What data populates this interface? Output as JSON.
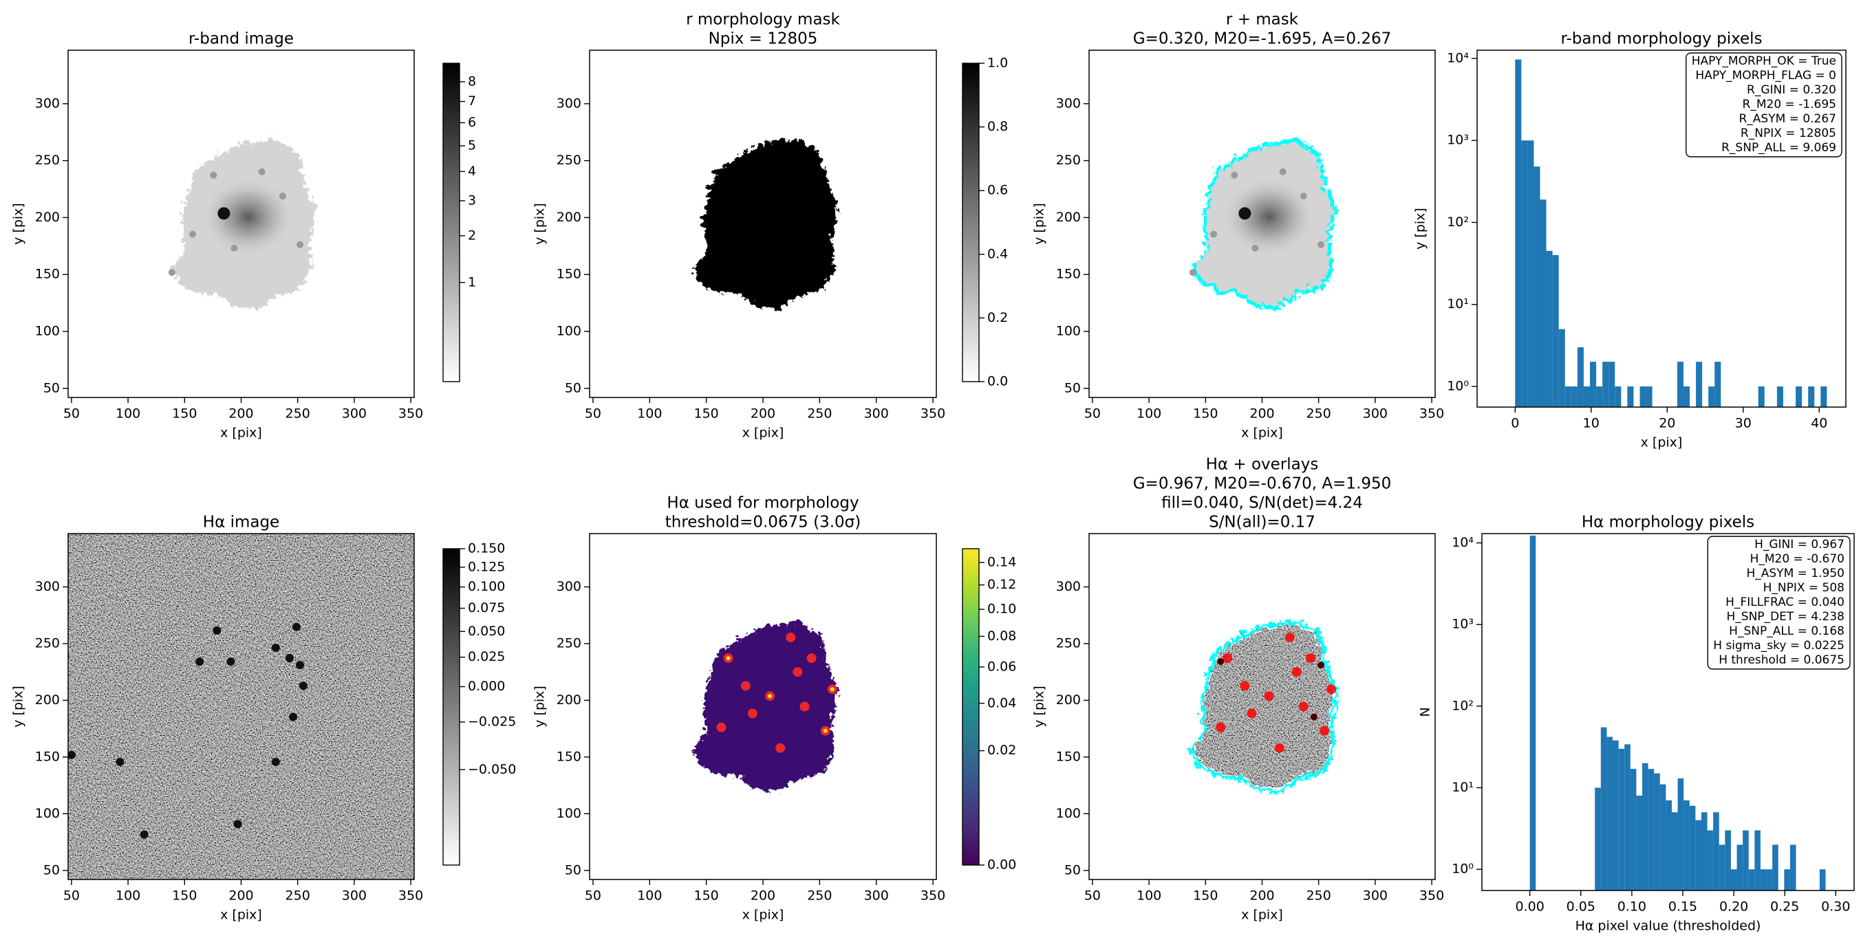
{
  "chart_data": [
    {
      "type": "image",
      "title": [
        "r-band image"
      ],
      "xlabel": "x [pix]",
      "ylabel": "y [pix]",
      "xlim": [
        47,
        353
      ],
      "ylim": [
        42,
        347
      ],
      "xticks": [
        50,
        100,
        150,
        200,
        250,
        300,
        350
      ],
      "yticks": [
        50,
        100,
        150,
        200,
        250,
        300
      ],
      "colorbar": {
        "cmap": "gray_r",
        "stretch": "sqrt",
        "clim": [
          0.14,
          9.0
        ],
        "ticks": [
          1,
          2,
          3,
          4,
          5,
          6,
          7,
          8
        ]
      }
    },
    {
      "type": "image",
      "title": [
        "r morphology mask",
        "Npix = 12805"
      ],
      "xlabel": "x [pix]",
      "ylabel": "y [pix]",
      "xlim": [
        47,
        353
      ],
      "ylim": [
        42,
        347
      ],
      "xticks": [
        50,
        100,
        150,
        200,
        250,
        300,
        350
      ],
      "yticks": [
        50,
        100,
        150,
        200,
        250,
        300
      ],
      "colorbar": {
        "cmap": "gray_r",
        "stretch": "linear",
        "clim": [
          0,
          1
        ],
        "ticks": [
          {
            "value": 0,
            "label": "0.0"
          },
          0.2,
          0.4,
          0.6,
          0.8,
          {
            "value": 1,
            "label": "1.0"
          }
        ]
      }
    },
    {
      "type": "image",
      "title": [
        "r + mask",
        "G=0.320, M20=-1.695, A=0.267"
      ],
      "xlabel": "x [pix]",
      "ylabel": "y [pix]",
      "xlim": [
        47,
        353
      ],
      "ylim": [
        42,
        347
      ],
      "xticks": [
        50,
        100,
        150,
        200,
        250,
        300,
        350
      ],
      "yticks": [
        50,
        100,
        150,
        200,
        250,
        300
      ],
      "contour_color": "#00ffff"
    },
    {
      "type": "histogram",
      "title": [
        "r-band morphology pixels"
      ],
      "xlabel": "x [pix]",
      "ylabel": "y [pix]",
      "color": "#1f77b4",
      "yscale": "log",
      "xlim": [
        -5,
        43.5
      ],
      "ylim": [
        0.56,
        12600
      ],
      "xticks": [
        0,
        10,
        20,
        30,
        40
      ],
      "yticks": [
        {
          "value": 1,
          "label": "10⁰"
        },
        {
          "value": 10,
          "label": "10¹"
        },
        {
          "value": 100,
          "label": "10²"
        },
        {
          "value": 1000,
          "label": "10³"
        },
        {
          "value": 10000,
          "label": "10⁴"
        }
      ],
      "bins": [
        0,
        0.82,
        1.64,
        2.46,
        3.28,
        4.1,
        4.92,
        5.74,
        6.56,
        7.38,
        8.2,
        9.02,
        9.84,
        10.66,
        11.48,
        12.3,
        13.12,
        13.94,
        14.76,
        15.58,
        16.4,
        17.22,
        18.04,
        18.86,
        19.68,
        20.5,
        21.32,
        22.14,
        22.96,
        23.78,
        24.6,
        25.42,
        26.24,
        27.06,
        27.88,
        28.7,
        29.52,
        30.34,
        31.16,
        31.98,
        32.8,
        33.62,
        34.44,
        35.26,
        36.08,
        36.9,
        37.72,
        38.54,
        39.36,
        40.18,
        41.0
      ],
      "values": [
        9700,
        1000,
        1000,
        480,
        190,
        45,
        40,
        5,
        1,
        1,
        3,
        1,
        2,
        1,
        2,
        2,
        1,
        0,
        1,
        0,
        1,
        1,
        0,
        0,
        0,
        0,
        2,
        1,
        0,
        2,
        0,
        1,
        2,
        0,
        0,
        0,
        0,
        0,
        0,
        1,
        0,
        0,
        1,
        0,
        0,
        1,
        0,
        1,
        0,
        1
      ],
      "annotation": [
        "HAPY_MORPH_OK = True",
        "HAPY_MORPH_FLAG = 0",
        "R_GINI = 0.320",
        "R_M20 = -1.695",
        "R_ASYM = 0.267",
        "R_NPIX = 12805",
        "R_SNP_ALL = 9.069"
      ]
    },
    {
      "type": "image",
      "title": [
        "Hα image"
      ],
      "xlabel": "x [pix]",
      "ylabel": "y [pix]",
      "xlim": [
        47,
        353
      ],
      "ylim": [
        42,
        347
      ],
      "xticks": [
        50,
        100,
        150,
        200,
        250,
        300,
        350
      ],
      "yticks": [
        50,
        100,
        150,
        200,
        250,
        300
      ],
      "colorbar": {
        "cmap": "gray_r",
        "stretch": "sqrt",
        "clim": [
          -0.07,
          0.15
        ],
        "ticks": [
          {
            "value": -0.05,
            "label": "−0.050"
          },
          {
            "value": -0.025,
            "label": "−0.025"
          },
          {
            "value": 0,
            "label": "0.000"
          },
          0.025,
          {
            "value": 0.05,
            "label": "0.050"
          },
          0.075,
          {
            "value": 0.1,
            "label": "0.100"
          },
          0.125,
          {
            "value": 0.15,
            "label": "0.150"
          }
        ]
      }
    },
    {
      "type": "image",
      "title": [
        "Hα used for morphology",
        "threshold=0.0675 (3.0σ)"
      ],
      "xlabel": "x [pix]",
      "ylabel": "y [pix]",
      "xlim": [
        47,
        353
      ],
      "ylim": [
        42,
        347
      ],
      "xticks": [
        50,
        100,
        150,
        200,
        250,
        300,
        350
      ],
      "yticks": [
        50,
        100,
        150,
        200,
        250,
        300
      ],
      "colorbar": {
        "cmap": "viridis",
        "stretch": "sqrt",
        "clim": [
          0,
          0.153
        ],
        "ticks": [
          {
            "value": 0,
            "label": "0.00"
          },
          0.02,
          0.04,
          0.06,
          0.08,
          {
            "value": 0.1,
            "label": "0.10"
          },
          0.12,
          0.14
        ]
      }
    },
    {
      "type": "image",
      "title": [
        "Hα + overlays",
        "G=0.967, M20=-0.670, A=1.950",
        "fill=0.040, S/N(det)=4.24",
        "S/N(all)=0.17"
      ],
      "xlabel": "x [pix]",
      "ylabel": "y [pix]",
      "xlim": [
        47,
        353
      ],
      "ylim": [
        42,
        347
      ],
      "xticks": [
        50,
        100,
        150,
        200,
        250,
        300,
        350
      ],
      "yticks": [
        50,
        100,
        150,
        200,
        250,
        300
      ],
      "contour_color": "#00ffff",
      "spot_color": "#ff0000"
    },
    {
      "type": "histogram",
      "title": [
        "Hα morphology pixels"
      ],
      "xlabel": "Hα pixel value (thresholded)",
      "ylabel": "N",
      "color": "#1f77b4",
      "yscale": "log",
      "xlim": [
        -0.047,
        0.318
      ],
      "ylim": [
        0.55,
        13000
      ],
      "xticks": [
        {
          "value": 0,
          "label": "0.00"
        },
        0.05,
        {
          "value": 0.1,
          "label": "0.10"
        },
        0.15,
        {
          "value": 0.2,
          "label": "0.20"
        },
        0.25,
        {
          "value": 0.3,
          "label": "0.30"
        }
      ],
      "yticks": [
        {
          "value": 1,
          "label": "10⁰"
        },
        {
          "value": 10,
          "label": "10¹"
        },
        {
          "value": 100,
          "label": "10²"
        },
        {
          "value": 1000,
          "label": "10³"
        },
        {
          "value": 10000,
          "label": "10⁴"
        }
      ],
      "bins": [
        0,
        0.0058,
        0.0116,
        0.0174,
        0.0232,
        0.029,
        0.0348,
        0.0406,
        0.0464,
        0.0522,
        0.058,
        0.0638,
        0.0696,
        0.0754,
        0.0812,
        0.087,
        0.0928,
        0.0986,
        0.1044,
        0.1102,
        0.116,
        0.1218,
        0.1276,
        0.1334,
        0.1392,
        0.145,
        0.1508,
        0.1566,
        0.1624,
        0.1682,
        0.174,
        0.1798,
        0.1856,
        0.1914,
        0.1972,
        0.203,
        0.2088,
        0.2146,
        0.2204,
        0.2262,
        0.232,
        0.2378,
        0.2436,
        0.2494,
        0.2552,
        0.261,
        0.2668,
        0.2726,
        0.2784,
        0.2842,
        0.29
      ],
      "values": [
        12297,
        0,
        0,
        0,
        0,
        0,
        0,
        0,
        0,
        0,
        0,
        10,
        55,
        42,
        38,
        30,
        34,
        17,
        8,
        20,
        17,
        15,
        11,
        7,
        5,
        13,
        7,
        6,
        4,
        5,
        3,
        5,
        2,
        3,
        1,
        2,
        3,
        1,
        3,
        1,
        1,
        2,
        0,
        1,
        2,
        0,
        0,
        0,
        0,
        1
      ],
      "annotation": [
        "H_GINI = 0.967",
        "H_M20 = -0.670",
        "H_ASYM = 1.950",
        "H_NPIX = 508",
        "H_FILLFRAC = 0.040",
        "H_SNP_DET = 4.238",
        "H_SNP_ALL = 0.168",
        "H sigma_sky = 0.0225",
        "H threshold = 0.0675"
      ]
    }
  ]
}
